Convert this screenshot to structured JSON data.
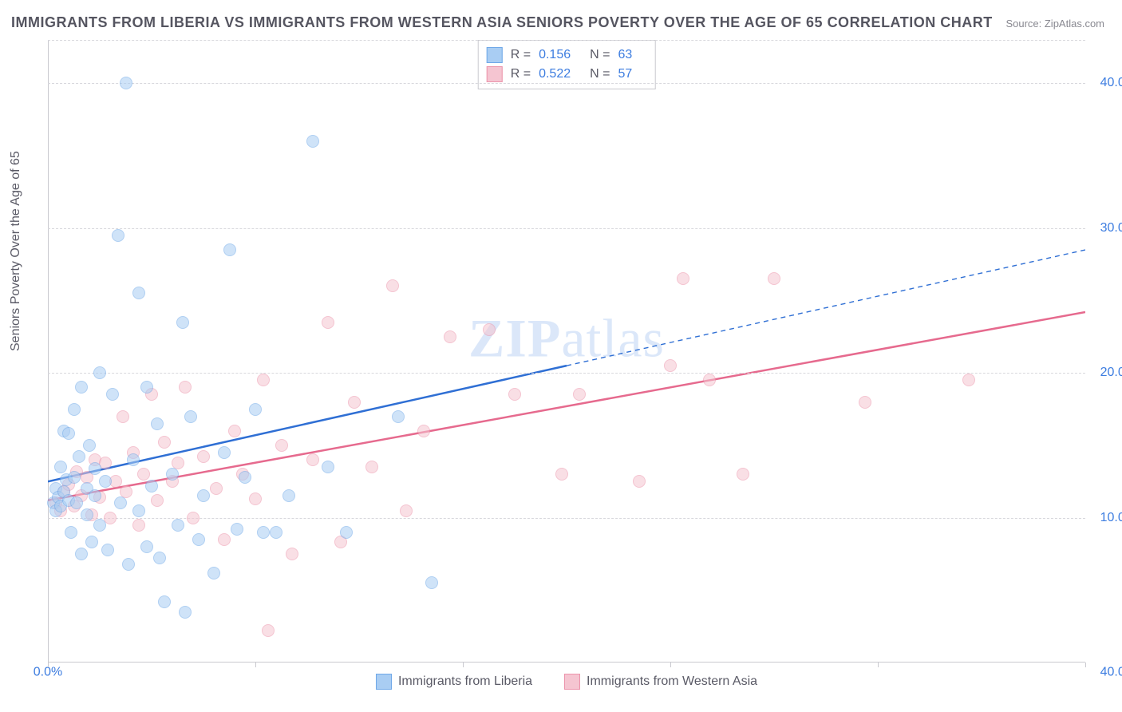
{
  "title": "IMMIGRANTS FROM LIBERIA VS IMMIGRANTS FROM WESTERN ASIA SENIORS POVERTY OVER THE AGE OF 65 CORRELATION CHART",
  "source": "Source: ZipAtlas.com",
  "ylabel": "Seniors Poverty Over the Age of 65",
  "watermark_zip": "ZIP",
  "watermark_atlas": "atlas",
  "chart": {
    "type": "scatter",
    "xlim": [
      0,
      40
    ],
    "ylim": [
      0,
      43
    ],
    "y_gridlines": [
      10,
      20,
      30,
      40,
      43
    ],
    "y_tick_labels": {
      "10": "10.0%",
      "20": "20.0%",
      "30": "30.0%",
      "40": "40.0%"
    },
    "x_tick_positions": [
      0,
      8,
      16,
      24,
      32,
      40
    ],
    "x_min_label": "0.0%",
    "x_max_label": "40.0%",
    "background_color": "#ffffff",
    "grid_color": "#d8d8dd",
    "axis_color": "#c9c9cf",
    "tick_label_color": "#3d7de0",
    "tick_fontsize": 16,
    "title_color": "#555560",
    "title_fontsize": 18,
    "marker_radius": 8,
    "marker_opacity": 0.55
  },
  "series": {
    "liberia": {
      "label": "Immigrants from Liberia",
      "R_label": "R  =",
      "R": "0.156",
      "N_label": "N  =",
      "N": "63",
      "fill": "#a9cdf3",
      "stroke": "#6fa8e8",
      "line_color": "#2f6fd4",
      "line_width": 2.5,
      "line_dash_after_x": 20,
      "trendline": {
        "y_at_x0": 12.5,
        "y_at_x40": 28.5
      },
      "points": [
        [
          0.2,
          11.0
        ],
        [
          0.3,
          10.5
        ],
        [
          0.3,
          12.0
        ],
        [
          0.4,
          11.4
        ],
        [
          0.5,
          10.8
        ],
        [
          0.5,
          13.5
        ],
        [
          0.6,
          16.0
        ],
        [
          0.6,
          11.8
        ],
        [
          0.7,
          12.6
        ],
        [
          0.8,
          15.8
        ],
        [
          0.8,
          11.2
        ],
        [
          0.9,
          9.0
        ],
        [
          1.0,
          12.8
        ],
        [
          1.0,
          17.5
        ],
        [
          1.1,
          11.0
        ],
        [
          1.2,
          14.2
        ],
        [
          1.3,
          19.0
        ],
        [
          1.3,
          7.5
        ],
        [
          1.5,
          10.2
        ],
        [
          1.5,
          12.0
        ],
        [
          1.6,
          15.0
        ],
        [
          1.7,
          8.3
        ],
        [
          1.8,
          11.5
        ],
        [
          1.8,
          13.4
        ],
        [
          2.0,
          20.0
        ],
        [
          2.0,
          9.5
        ],
        [
          2.2,
          12.5
        ],
        [
          2.3,
          7.8
        ],
        [
          2.5,
          18.5
        ],
        [
          2.7,
          29.5
        ],
        [
          2.8,
          11.0
        ],
        [
          3.0,
          40.0
        ],
        [
          3.1,
          6.8
        ],
        [
          3.3,
          14.0
        ],
        [
          3.5,
          10.5
        ],
        [
          3.5,
          25.5
        ],
        [
          3.8,
          19.0
        ],
        [
          3.8,
          8.0
        ],
        [
          4.0,
          12.2
        ],
        [
          4.2,
          16.5
        ],
        [
          4.3,
          7.2
        ],
        [
          4.5,
          4.2
        ],
        [
          4.8,
          13.0
        ],
        [
          5.0,
          9.5
        ],
        [
          5.2,
          23.5
        ],
        [
          5.3,
          3.5
        ],
        [
          5.5,
          17.0
        ],
        [
          5.8,
          8.5
        ],
        [
          6.0,
          11.5
        ],
        [
          6.4,
          6.2
        ],
        [
          6.8,
          14.5
        ],
        [
          7.0,
          28.5
        ],
        [
          7.3,
          9.2
        ],
        [
          7.6,
          12.8
        ],
        [
          8.0,
          17.5
        ],
        [
          8.3,
          9.0
        ],
        [
          8.8,
          9.0
        ],
        [
          9.3,
          11.5
        ],
        [
          10.2,
          36.0
        ],
        [
          10.8,
          13.5
        ],
        [
          11.5,
          9.0
        ],
        [
          13.5,
          17.0
        ],
        [
          14.8,
          5.5
        ]
      ]
    },
    "western_asia": {
      "label": "Immigrants from Western Asia",
      "R_label": "R  =",
      "R": "0.522",
      "N_label": "N  =",
      "N": "57",
      "fill": "#f5c5d1",
      "stroke": "#ec94ab",
      "line_color": "#e66a8e",
      "line_width": 2.5,
      "trendline": {
        "y_at_x0": 11.2,
        "y_at_x40": 24.2
      },
      "points": [
        [
          0.3,
          11.0
        ],
        [
          0.5,
          10.5
        ],
        [
          0.6,
          11.8
        ],
        [
          0.8,
          12.3
        ],
        [
          1.0,
          10.8
        ],
        [
          1.1,
          13.2
        ],
        [
          1.3,
          11.5
        ],
        [
          1.5,
          12.8
        ],
        [
          1.7,
          10.2
        ],
        [
          1.8,
          14.0
        ],
        [
          2.0,
          11.4
        ],
        [
          2.2,
          13.8
        ],
        [
          2.4,
          10.0
        ],
        [
          2.6,
          12.5
        ],
        [
          2.9,
          17.0
        ],
        [
          3.0,
          11.8
        ],
        [
          3.3,
          14.5
        ],
        [
          3.5,
          9.5
        ],
        [
          3.7,
          13.0
        ],
        [
          4.0,
          18.5
        ],
        [
          4.2,
          11.2
        ],
        [
          4.5,
          15.2
        ],
        [
          4.8,
          12.5
        ],
        [
          5.0,
          13.8
        ],
        [
          5.3,
          19.0
        ],
        [
          5.6,
          10.0
        ],
        [
          6.0,
          14.2
        ],
        [
          6.5,
          12.0
        ],
        [
          6.8,
          8.5
        ],
        [
          7.2,
          16.0
        ],
        [
          7.5,
          13.0
        ],
        [
          8.0,
          11.3
        ],
        [
          8.3,
          19.5
        ],
        [
          8.5,
          2.2
        ],
        [
          9.0,
          15.0
        ],
        [
          9.4,
          7.5
        ],
        [
          10.2,
          14.0
        ],
        [
          10.8,
          23.5
        ],
        [
          11.3,
          8.3
        ],
        [
          11.8,
          18.0
        ],
        [
          12.5,
          13.5
        ],
        [
          13.3,
          26.0
        ],
        [
          13.8,
          10.5
        ],
        [
          14.5,
          16.0
        ],
        [
          15.5,
          22.5
        ],
        [
          17.0,
          23.0
        ],
        [
          18.0,
          18.5
        ],
        [
          19.8,
          13.0
        ],
        [
          20.5,
          18.5
        ],
        [
          22.8,
          12.5
        ],
        [
          24.5,
          26.5
        ],
        [
          25.5,
          19.5
        ],
        [
          26.8,
          13.0
        ],
        [
          28.0,
          26.5
        ],
        [
          31.5,
          18.0
        ],
        [
          35.5,
          19.5
        ],
        [
          24.0,
          20.5
        ]
      ]
    }
  }
}
